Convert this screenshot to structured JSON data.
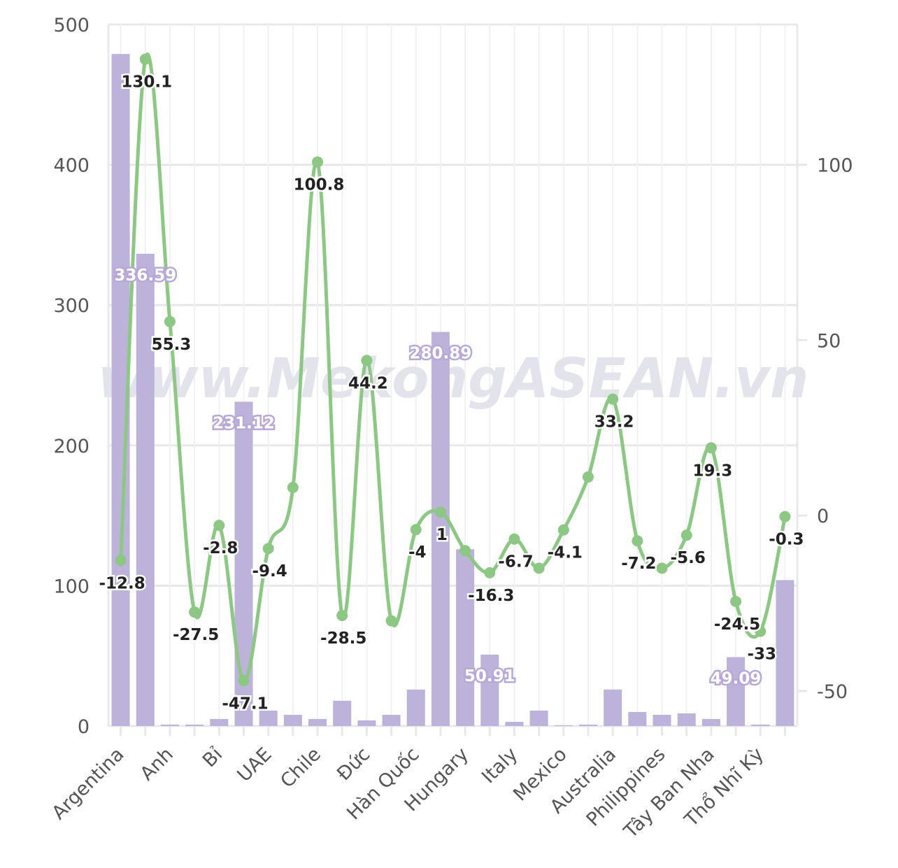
{
  "watermark": "www.MekongASEAN.vn",
  "chart_data": {
    "type": "bar+line",
    "categories": [
      "Argentina",
      "",
      "Anh",
      "",
      "Bỉ",
      "",
      "UAE",
      "",
      "Chile",
      "",
      "Đức",
      "",
      "Hàn Quốc",
      "",
      "Hungary",
      "",
      "Italy",
      "",
      "Mexico",
      "",
      "Australia",
      "",
      "Philippines",
      "",
      "Tây Ban Nha",
      "",
      "Thổ Nhĩ Kỳ",
      ""
    ],
    "y_left": {
      "min": 0,
      "max": 500,
      "ticks": [
        "0",
        "100",
        "200",
        "300",
        "400",
        "500"
      ],
      "tick_values": [
        0,
        100,
        200,
        300,
        400,
        500
      ]
    },
    "y_right": {
      "min": -60,
      "max": 140,
      "ticks": [
        "-50",
        "0",
        "50",
        "100"
      ],
      "tick_values": [
        -50,
        0,
        50,
        100
      ]
    },
    "series": [
      {
        "name": "value",
        "type": "bar",
        "axis": "left",
        "color": "#bdb2d9",
        "values": [
          479,
          336.59,
          1,
          1,
          5,
          231.12,
          11,
          8,
          5,
          18,
          4,
          8,
          26,
          280.89,
          126,
          50.91,
          3,
          11,
          0.5,
          1,
          26,
          10,
          8,
          9,
          5,
          49.09,
          1,
          104
        ],
        "labels": [
          "",
          "336.59",
          "",
          "",
          "",
          "231.12",
          "",
          "",
          "",
          "",
          "",
          "",
          "",
          "280.89",
          "",
          "50.91",
          "",
          "",
          "",
          "",
          "",
          "",
          "",
          "",
          "",
          "49.09",
          "",
          ""
        ]
      },
      {
        "name": "growth",
        "type": "line",
        "axis": "right",
        "color": "#8cc784",
        "values": [
          -12.8,
          130.1,
          55.3,
          -27.5,
          -2.8,
          -47.1,
          -9.4,
          8,
          100.8,
          -28.5,
          44.2,
          -30,
          -4,
          1,
          -10,
          -16.3,
          -6.7,
          -15,
          -4.1,
          11,
          33.2,
          -7.2,
          -15,
          -5.6,
          19.3,
          -24.5,
          -33,
          -0.3
        ],
        "labels": [
          "-12.8",
          "130.1",
          "55.3",
          "-27.5",
          "-2.8",
          "-47.1",
          "-9.4",
          "",
          "100.8",
          "-28.5",
          "44.2",
          "",
          "-4",
          "1",
          "",
          "-16.3",
          "-6.7",
          "",
          "-4.1",
          "",
          "33.2",
          "-7.2",
          "",
          "-5.6",
          "19.3",
          "-24.5",
          "-33",
          "-0.3"
        ]
      }
    ],
    "grid": true,
    "legend": "none"
  }
}
